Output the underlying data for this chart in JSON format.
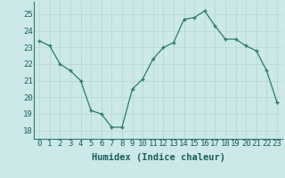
{
  "x": [
    0,
    1,
    2,
    3,
    4,
    5,
    6,
    7,
    8,
    9,
    10,
    11,
    12,
    13,
    14,
    15,
    16,
    17,
    18,
    19,
    20,
    21,
    22,
    23
  ],
  "y": [
    23.4,
    23.1,
    22.0,
    21.6,
    21.0,
    19.2,
    19.0,
    18.2,
    18.2,
    20.5,
    21.1,
    22.3,
    23.0,
    23.3,
    24.7,
    24.8,
    25.2,
    24.3,
    23.5,
    23.5,
    23.1,
    22.8,
    21.6,
    19.7
  ],
  "xlabel": "Humidex (Indice chaleur)",
  "ylim": [
    17.5,
    25.75
  ],
  "xlim": [
    -0.5,
    23.5
  ],
  "yticks": [
    18,
    19,
    20,
    21,
    22,
    23,
    24,
    25
  ],
  "xticks": [
    0,
    1,
    2,
    3,
    4,
    5,
    6,
    7,
    8,
    9,
    10,
    11,
    12,
    13,
    14,
    15,
    16,
    17,
    18,
    19,
    20,
    21,
    22,
    23
  ],
  "line_color": "#2d7a6e",
  "marker": "+",
  "bg_color": "#cce8e8",
  "grid_color": "#b8d8d8",
  "axis_color": "#2d7a6e",
  "label_color": "#1a5c5c",
  "tick_color": "#1a5c5c",
  "font_size": 6.5,
  "xlabel_fontsize": 7.5
}
